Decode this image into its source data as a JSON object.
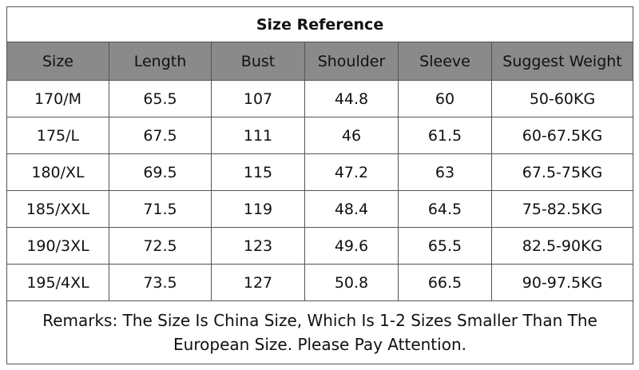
{
  "table": {
    "title": "Size Reference",
    "headers": [
      "Size",
      "Length",
      "Bust",
      "Shoulder",
      "Sleeve",
      "Suggest Weight"
    ],
    "rows": [
      [
        "170/M",
        "65.5",
        "107",
        "44.8",
        "60",
        "50-60KG"
      ],
      [
        "175/L",
        "67.5",
        "111",
        "46",
        "61.5",
        "60-67.5KG"
      ],
      [
        "180/XL",
        "69.5",
        "115",
        "47.2",
        "63",
        "67.5-75KG"
      ],
      [
        "185/XXL",
        "71.5",
        "119",
        "48.4",
        "64.5",
        "75-82.5KG"
      ],
      [
        "190/3XL",
        "72.5",
        "123",
        "49.6",
        "65.5",
        "82.5-90KG"
      ],
      [
        "195/4XL",
        "73.5",
        "127",
        "50.8",
        "66.5",
        "90-97.5KG"
      ]
    ],
    "remarks": "Remarks: The Size Is China Size, Which Is 1-2 Sizes Smaller Than The European Size. Please Pay Attention."
  },
  "colors": {
    "header_background": "#8a8a8a",
    "border": "#555555",
    "text": "#111111",
    "page_background": "#ffffff"
  }
}
